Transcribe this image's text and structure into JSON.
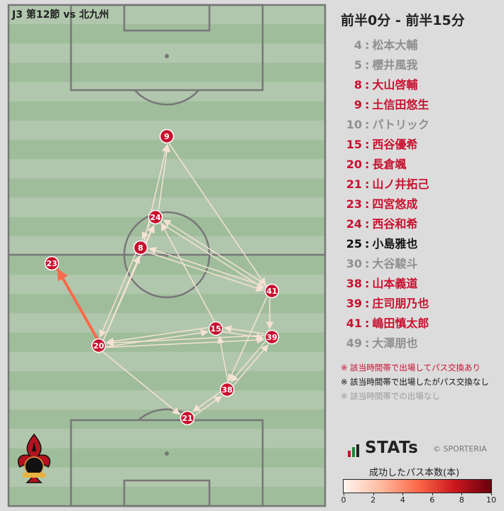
{
  "header": {
    "match_title": "J3 第12節 vs 北九州"
  },
  "panel": {
    "time_range": "前半0分 - 前半15分",
    "roster": [
      {
        "num": "4",
        "name": "松本大輔",
        "status": "absent"
      },
      {
        "num": "5",
        "name": "櫻井風我",
        "status": "absent"
      },
      {
        "num": "8",
        "name": "大山啓輔",
        "status": "active"
      },
      {
        "num": "9",
        "name": "土信田悠生",
        "status": "active"
      },
      {
        "num": "10",
        "name": "パトリック",
        "status": "absent"
      },
      {
        "num": "15",
        "name": "西谷優希",
        "status": "active"
      },
      {
        "num": "20",
        "name": "長倉颯",
        "status": "active"
      },
      {
        "num": "21",
        "name": "山ノ井拓己",
        "status": "active"
      },
      {
        "num": "23",
        "name": "四宮悠成",
        "status": "active"
      },
      {
        "num": "24",
        "name": "西谷和希",
        "status": "active"
      },
      {
        "num": "25",
        "name": "小島雅也",
        "status": "nopass"
      },
      {
        "num": "30",
        "name": "大谷駿斗",
        "status": "absent"
      },
      {
        "num": "38",
        "name": "山本義道",
        "status": "active"
      },
      {
        "num": "39",
        "name": "庄司朋乃也",
        "status": "active"
      },
      {
        "num": "41",
        "name": "嶋田慎太郎",
        "status": "active"
      },
      {
        "num": "49",
        "name": "大澤朋也",
        "status": "absent"
      }
    ],
    "notes": [
      "※ 該当時間帯で出場してパス交換あり",
      "※ 該当時間帯で出場したがパス交換なし",
      "※ 該当時間帯での出場なし"
    ],
    "logo_text": "STATs",
    "credit": "© SPORTERIA",
    "legend_title": "成功したパス本数(本)",
    "colorbar_ticks": [
      "0",
      "2",
      "4",
      "6",
      "8",
      "10"
    ]
  },
  "colors": {
    "active": "#c8102e",
    "nopass": "#111111",
    "absent": "#8f8f8f",
    "pitch_light": "#b1c7ad",
    "pitch_dark": "#9fbd9b",
    "node_fill": "#c8102e"
  },
  "chart_data": {
    "type": "pass-network",
    "colorbar_range": [
      0,
      10
    ],
    "players": [
      "9",
      "24",
      "8",
      "23",
      "41",
      "15",
      "39",
      "20",
      "38",
      "21"
    ],
    "passes": [
      {
        "from": "23",
        "to": "20",
        "count": 0
      },
      {
        "from": "20",
        "to": "23",
        "count": 5
      },
      {
        "from": "24",
        "to": "9",
        "count": 1
      },
      {
        "from": "8",
        "to": "9",
        "count": 1
      },
      {
        "from": "9",
        "to": "41",
        "count": 1
      },
      {
        "from": "8",
        "to": "24",
        "count": 1
      },
      {
        "from": "24",
        "to": "8",
        "count": 1
      },
      {
        "from": "41",
        "to": "24",
        "count": 1
      },
      {
        "from": "24",
        "to": "41",
        "count": 1
      },
      {
        "from": "8",
        "to": "41",
        "count": 1
      },
      {
        "from": "41",
        "to": "8",
        "count": 1
      },
      {
        "from": "20",
        "to": "8",
        "count": 1
      },
      {
        "from": "8",
        "to": "20",
        "count": 1
      },
      {
        "from": "20",
        "to": "24",
        "count": 1
      },
      {
        "from": "15",
        "to": "24",
        "count": 1
      },
      {
        "from": "20",
        "to": "15",
        "count": 1
      },
      {
        "from": "15",
        "to": "20",
        "count": 1
      },
      {
        "from": "20",
        "to": "39",
        "count": 1
      },
      {
        "from": "39",
        "to": "20",
        "count": 1
      },
      {
        "from": "15",
        "to": "39",
        "count": 2
      },
      {
        "from": "39",
        "to": "15",
        "count": 1
      },
      {
        "from": "41",
        "to": "39",
        "count": 1
      },
      {
        "from": "20",
        "to": "21",
        "count": 1
      },
      {
        "from": "21",
        "to": "38",
        "count": 1
      },
      {
        "from": "38",
        "to": "21",
        "count": 1
      },
      {
        "from": "38",
        "to": "39",
        "count": 1
      },
      {
        "from": "39",
        "to": "38",
        "count": 1
      },
      {
        "from": "41",
        "to": "38",
        "count": 1
      },
      {
        "from": "38",
        "to": "15",
        "count": 1
      }
    ]
  }
}
